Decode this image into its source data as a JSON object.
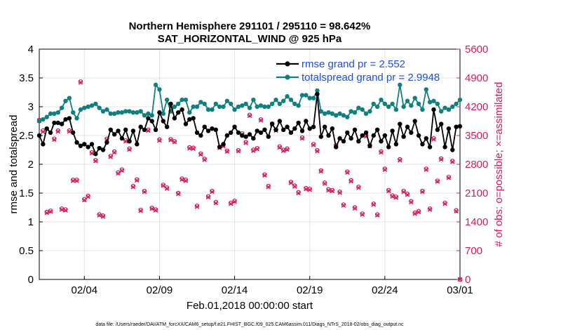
{
  "chart_data": {
    "type": "line",
    "title": [
      "Northern Hemisphere 291101 / 295110 = 98.642%",
      "SAT_HORIZONTAL_WIND @ 925 hPa"
    ],
    "xlabel": "Feb.01,2018 00:00:00 start",
    "ylabel_left": "rmse and totalspread",
    "ylabel_right": "# of obs: o=possible; ×=assimilated",
    "xlim": [
      0,
      112
    ],
    "ylim_left": [
      0,
      4
    ],
    "ylim_right": [
      0,
      5600
    ],
    "x_ticks": [
      {
        "pos": 12,
        "label": "02/04"
      },
      {
        "pos": 32,
        "label": "02/09"
      },
      {
        "pos": 52,
        "label": "02/14"
      },
      {
        "pos": 72,
        "label": "02/19"
      },
      {
        "pos": 92,
        "label": "02/24"
      },
      {
        "pos": 112,
        "label": "03/01"
      }
    ],
    "y_ticks_left": [
      0,
      0.5,
      1,
      1.5,
      2,
      2.5,
      3,
      3.5,
      4
    ],
    "y_ticks_right": [
      0,
      700,
      1400,
      2100,
      2800,
      3500,
      4200,
      4900,
      5600
    ],
    "grid": true,
    "legend_position": "top-right",
    "colors": {
      "rmse": "#000000",
      "totalspread": "#0f8080",
      "obs": "#d6195e",
      "legend_text": "#1f4fe0"
    },
    "series": [
      {
        "name": "rmse grand pr = 2.552",
        "axis": "left",
        "values": [
          2.5,
          2.35,
          2.62,
          2.55,
          2.72,
          2.72,
          2.7,
          2.78,
          2.8,
          2.55,
          2.38,
          2.32,
          2.35,
          2.3,
          2.35,
          2.18,
          2.28,
          2.25,
          2.38,
          2.6,
          2.52,
          2.58,
          2.45,
          2.6,
          2.4,
          2.58,
          2.35,
          2.65,
          2.6,
          2.8,
          2.75,
          2.6,
          2.9,
          2.75,
          2.65,
          3.05,
          2.8,
          2.9,
          2.95,
          2.7,
          2.78,
          2.8,
          2.55,
          2.5,
          2.65,
          2.58,
          2.62,
          2.6,
          2.3,
          2.35,
          2.5,
          2.55,
          2.65,
          2.55,
          2.5,
          2.48,
          2.52,
          2.45,
          2.58,
          2.55,
          2.6,
          2.48,
          2.7,
          2.6,
          2.75,
          2.6,
          2.65,
          2.55,
          2.62,
          2.72,
          2.58,
          2.75,
          2.62,
          2.65,
          3.22,
          2.48,
          2.65,
          2.5,
          2.62,
          2.3,
          2.45,
          2.4,
          2.55,
          2.45,
          2.6,
          2.4,
          2.5,
          2.55,
          2.32,
          2.5,
          2.6,
          2.4,
          2.5,
          2.3,
          2.58,
          2.35,
          2.7,
          2.48,
          2.65,
          2.55,
          2.75,
          2.5,
          2.35,
          2.45,
          2.3,
          2.95,
          2.6,
          2.7,
          2.3,
          2.62,
          2.25,
          2.65,
          2.66
        ],
        "style": "line-marker"
      },
      {
        "name": "totalspread grand pr = 2.9948",
        "axis": "left",
        "values": [
          2.75,
          2.78,
          2.82,
          2.88,
          2.88,
          2.9,
          2.98,
          3.1,
          3.15,
          2.9,
          2.8,
          2.95,
          2.98,
          3.0,
          3.02,
          3.05,
          2.98,
          2.92,
          2.95,
          2.88,
          2.88,
          2.9,
          2.9,
          2.92,
          2.92,
          2.9,
          2.9,
          2.92,
          2.85,
          2.88,
          2.85,
          3.38,
          3.3,
          2.88,
          3.12,
          2.92,
          3.0,
          3.05,
          3.12,
          3.12,
          2.9,
          3.0,
          3.0,
          3.08,
          3.05,
          2.95,
          2.95,
          3.05,
          3.0,
          3.0,
          3.1,
          3.05,
          2.95,
          3.0,
          3.02,
          3.05,
          2.98,
          3.12,
          3.0,
          3.02,
          3.0,
          3.0,
          3.05,
          3.12,
          3.05,
          3.1,
          3.18,
          3.12,
          3.05,
          3.02,
          3.2,
          3.2,
          3.15,
          3.15,
          3.28,
          2.92,
          2.88,
          2.9,
          2.88,
          2.85,
          2.88,
          2.85,
          2.82,
          2.92,
          2.9,
          2.98,
          2.95,
          2.88,
          2.92,
          3.05,
          3.0,
          3.12,
          3.05,
          3.0,
          3.05,
          2.95,
          3.38,
          3.0,
          3.1,
          3.02,
          3.15,
          3.05,
          2.95,
          3.3,
          3.08,
          3.1,
          3.05,
          2.92,
          2.98,
          2.95,
          3.0,
          3.05,
          3.12
        ],
        "style": "line-marker"
      },
      {
        "name": "# obs possible",
        "axis": "right",
        "values": [
          3880,
          3620,
          1640,
          1670,
          3420,
          3620,
          1720,
          1700,
          3620,
          2420,
          2420,
          4810,
          1950,
          2030,
          3090,
          2900,
          1580,
          1550,
          3420,
          3000,
          3110,
          2600,
          2670,
          3380,
          3180,
          2270,
          2430,
          1690,
          2150,
          3640,
          1740,
          1700,
          3400,
          2300,
          2230,
          3410,
          3360,
          2100,
          2450,
          2420,
          3210,
          3200,
          1790,
          3060,
          2930,
          2020,
          2150,
          1880,
          3220,
          3260,
          3130,
          1860,
          1910,
          3140,
          3550,
          3340,
          4000,
          3150,
          3190,
          3890,
          2550,
          2270,
          3790,
          3640,
          3230,
          3150,
          3180,
          2370,
          2280,
          2120,
          3450,
          2220,
          2200,
          3290,
          3140,
          2650,
          2350,
          2190,
          2170,
          3260,
          2130,
          1820,
          2620,
          2410,
          1750,
          2250,
          1600,
          3500,
          3260,
          1840,
          1580,
          3110,
          2690,
          2170,
          2040,
          2010,
          2920,
          2150,
          2080,
          1900,
          1620,
          1660,
          2150,
          2690,
          1720,
          3430,
          2400,
          2940,
          1860,
          2490,
          2880,
          1680,
          0
        ],
        "style": "marker-o"
      },
      {
        "name": "# obs assimilated",
        "axis": "right",
        "values": [
          3860,
          3590,
          1620,
          1650,
          3400,
          3600,
          1700,
          1680,
          3600,
          2400,
          2400,
          4790,
          1930,
          2010,
          3070,
          2880,
          1560,
          1530,
          3400,
          2980,
          3090,
          2580,
          2650,
          3360,
          3160,
          2250,
          2410,
          1670,
          2130,
          3620,
          1720,
          1680,
          3380,
          2280,
          2210,
          3390,
          3340,
          2080,
          2430,
          2400,
          3190,
          3180,
          1770,
          3040,
          2910,
          2000,
          2130,
          1860,
          3200,
          3240,
          3110,
          1840,
          1890,
          3120,
          3530,
          3320,
          3980,
          3130,
          3170,
          3870,
          2530,
          2250,
          3770,
          3620,
          3210,
          3130,
          3160,
          2350,
          2260,
          2100,
          3430,
          2200,
          2180,
          3270,
          3120,
          2630,
          2330,
          2170,
          2150,
          3240,
          2110,
          1800,
          2600,
          2390,
          1730,
          2230,
          1580,
          3480,
          3240,
          1820,
          1560,
          3090,
          2670,
          2150,
          2020,
          1990,
          2900,
          2130,
          2060,
          1880,
          1600,
          1640,
          2130,
          2670,
          1700,
          3410,
          2380,
          2920,
          1840,
          2470,
          2860,
          1660,
          0
        ],
        "style": "marker-x"
      }
    ],
    "footer_text": "data file: /Users/raeder/DAI/ATM_forcXX/CAM6_setup/f.e21.FHIST_BGC.f09_025.CAM6assim.011/Diags_NTrS_2018-02/obs_diag_output.nc"
  }
}
